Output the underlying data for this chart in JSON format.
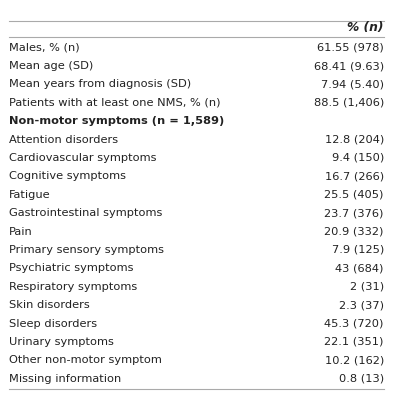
{
  "header": "% (n)",
  "rows": [
    {
      "label": "Males, % (n)",
      "value": "61.55 (978)",
      "bold_label": false
    },
    {
      "label": "Mean age (SD)",
      "value": "68.41 (9.63)",
      "bold_label": false
    },
    {
      "label": "Mean years from diagnosis (SD)",
      "value": "7.94 (5.40)",
      "bold_label": false
    },
    {
      "label": "Patients with at least one NMS, % (n)",
      "value": "88.5 (1,406)",
      "bold_label": false
    },
    {
      "label": "Non-motor symptoms (n = 1,589)",
      "value": "",
      "bold_label": true
    },
    {
      "label": "Attention disorders",
      "value": "12.8 (204)",
      "bold_label": false
    },
    {
      "label": "Cardiovascular symptoms",
      "value": "9.4 (150)",
      "bold_label": false
    },
    {
      "label": "Cognitive symptoms",
      "value": "16.7 (266)",
      "bold_label": false
    },
    {
      "label": "Fatigue",
      "value": "25.5 (405)",
      "bold_label": false
    },
    {
      "label": "Gastrointestinal symptoms",
      "value": "23.7 (376)",
      "bold_label": false
    },
    {
      "label": "Pain",
      "value": "20.9 (332)",
      "bold_label": false
    },
    {
      "label": "Primary sensory symptoms",
      "value": "7.9 (125)",
      "bold_label": false
    },
    {
      "label": "Psychiatric symptoms",
      "value": "43 (684)",
      "bold_label": false
    },
    {
      "label": "Respiratory symptoms",
      "value": "2 (31)",
      "bold_label": false
    },
    {
      "label": "Skin disorders",
      "value": "2.3 (37)",
      "bold_label": false
    },
    {
      "label": "Sleep disorders",
      "value": "45.3 (720)",
      "bold_label": false
    },
    {
      "label": "Urinary symptoms",
      "value": "22.1 (351)",
      "bold_label": false
    },
    {
      "label": "Other non-motor symptom",
      "value": "10.2 (162)",
      "bold_label": false
    },
    {
      "label": "Missing information",
      "value": "0.8 (13)",
      "bold_label": false
    }
  ],
  "bg_color": "#ffffff",
  "line_color": "#aaaaaa",
  "text_color": "#222222",
  "font_size": 8.2,
  "header_font_size": 8.8
}
